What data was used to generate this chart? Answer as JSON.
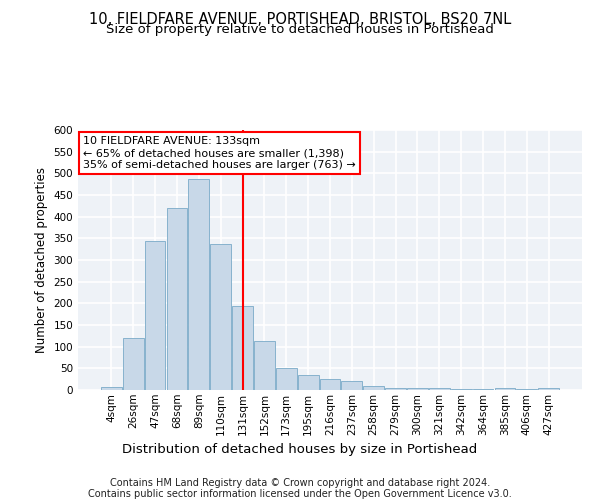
{
  "title_line1": "10, FIELDFARE AVENUE, PORTISHEAD, BRISTOL, BS20 7NL",
  "title_line2": "Size of property relative to detached houses in Portishead",
  "xlabel": "Distribution of detached houses by size in Portishead",
  "ylabel": "Number of detached properties",
  "categories": [
    "4sqm",
    "26sqm",
    "47sqm",
    "68sqm",
    "89sqm",
    "110sqm",
    "131sqm",
    "152sqm",
    "173sqm",
    "195sqm",
    "216sqm",
    "237sqm",
    "258sqm",
    "279sqm",
    "300sqm",
    "321sqm",
    "342sqm",
    "364sqm",
    "385sqm",
    "406sqm",
    "427sqm"
  ],
  "values": [
    6,
    120,
    345,
    420,
    487,
    338,
    194,
    112,
    50,
    35,
    26,
    20,
    10,
    5,
    5,
    5,
    3,
    3,
    5,
    3,
    5
  ],
  "bar_color": "#c8d8e8",
  "bar_edge_color": "#7aaac8",
  "vline_color": "red",
  "vline_x_index": 6,
  "annotation_text": "10 FIELDFARE AVENUE: 133sqm\n← 65% of detached houses are smaller (1,398)\n35% of semi-detached houses are larger (763) →",
  "annotation_box_color": "white",
  "annotation_box_edge": "red",
  "ylim": [
    0,
    600
  ],
  "yticks": [
    0,
    50,
    100,
    150,
    200,
    250,
    300,
    350,
    400,
    450,
    500,
    550,
    600
  ],
  "footer_line1": "Contains HM Land Registry data © Crown copyright and database right 2024.",
  "footer_line2": "Contains public sector information licensed under the Open Government Licence v3.0.",
  "bg_color": "#eef2f7",
  "grid_color": "white",
  "title1_fontsize": 10.5,
  "title2_fontsize": 9.5,
  "xlabel_fontsize": 9.5,
  "ylabel_fontsize": 8.5,
  "tick_fontsize": 7.5,
  "footer_fontsize": 7.0,
  "annotation_fontsize": 8.0
}
